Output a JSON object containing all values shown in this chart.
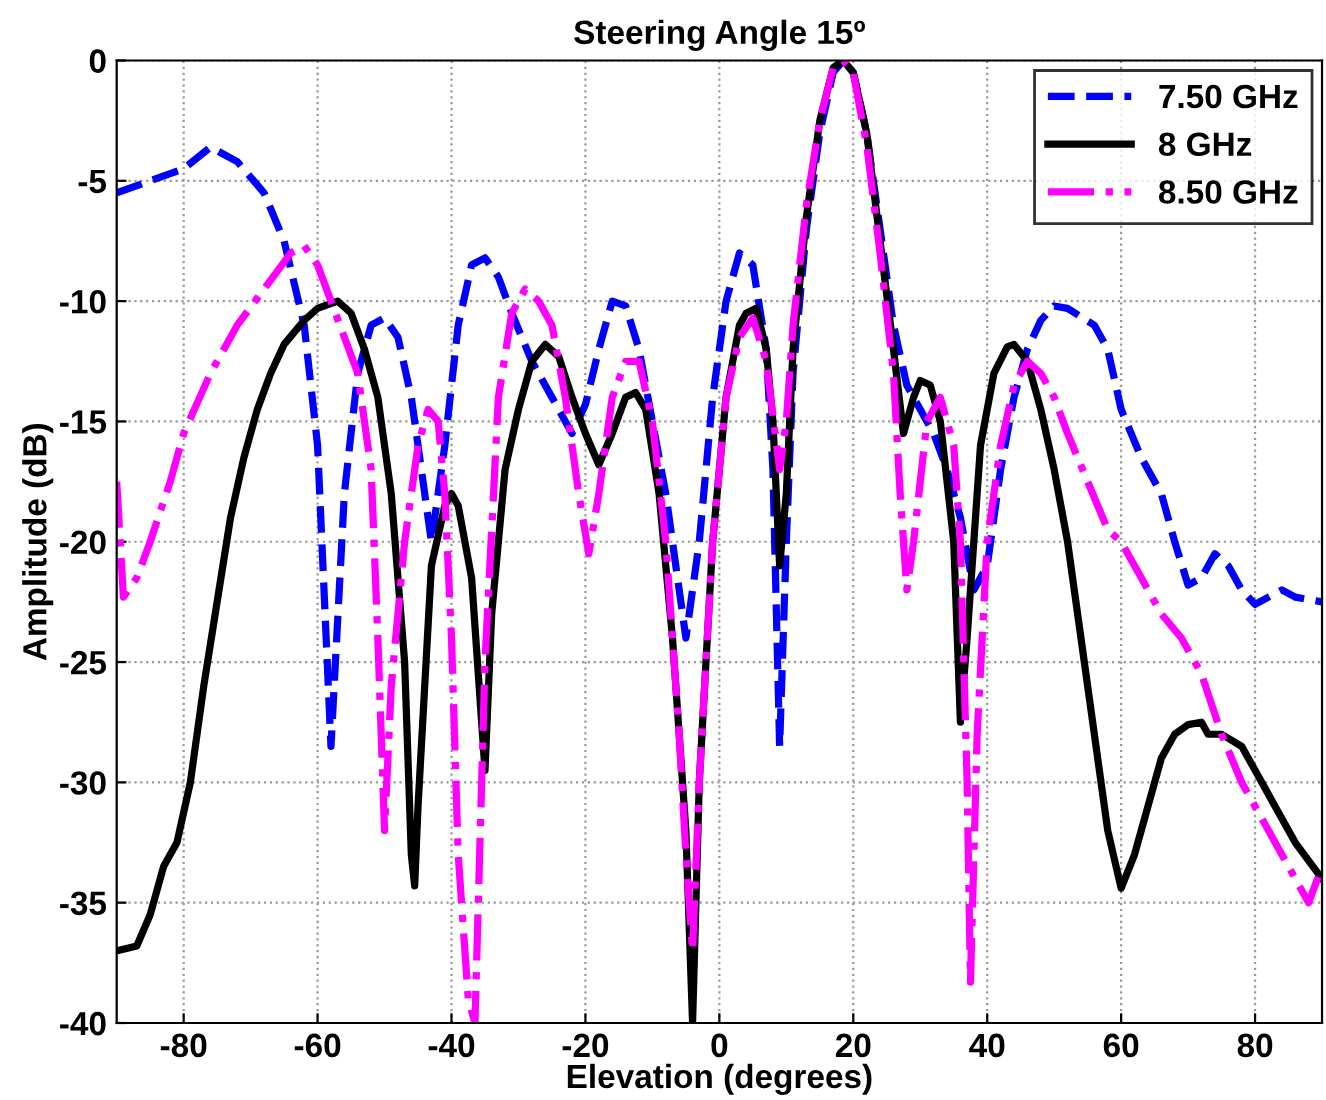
{
  "chart_data": {
    "type": "line",
    "title": "Steering Angle 15º",
    "xlabel": "Elevation (degrees)",
    "ylabel": "Amplitude (dB)",
    "xlim": [
      -90,
      90
    ],
    "ylim": [
      -40,
      0
    ],
    "xticks": [
      -80,
      -60,
      -40,
      -20,
      0,
      20,
      40,
      60,
      80
    ],
    "yticks": [
      0,
      -5,
      -10,
      -15,
      -20,
      -25,
      -30,
      -35,
      -40
    ],
    "grid": true,
    "legend": "top right",
    "marker": "none",
    "series": [
      {
        "name": "7.50 GHz",
        "color": "#0000ff",
        "line_style": "dashed",
        "x": [
          -90,
          -85,
          -80,
          -76,
          -72,
          -68,
          -65,
          -62,
          -60,
          -58,
          -56,
          -54,
          -52,
          -50,
          -48,
          -46,
          -44,
          -43,
          -41,
          -39,
          -37,
          -35,
          -33,
          -31,
          -28,
          -25,
          -22,
          -20,
          -18,
          -16,
          -14,
          -12,
          -10,
          -8,
          -6,
          -5,
          -3,
          -1,
          1,
          3,
          5,
          7,
          8,
          9,
          10,
          11,
          13,
          15,
          17,
          18.5,
          20,
          22,
          24,
          26,
          28,
          30,
          32,
          34,
          36,
          38,
          40,
          42,
          44,
          46,
          48,
          50,
          52,
          56,
          58,
          60,
          63,
          66,
          68,
          70,
          72,
          74,
          76,
          78,
          80,
          82,
          84,
          86,
          90
        ],
        "values": [
          -5.5,
          -5,
          -4.5,
          -3.6,
          -4.2,
          -5.5,
          -7.5,
          -11,
          -16,
          -28.5,
          -18,
          -13,
          -11,
          -10.7,
          -11.5,
          -14,
          -18,
          -20,
          -16,
          -11,
          -8.5,
          -8.2,
          -9,
          -10.5,
          -12.5,
          -14,
          -15.5,
          -14.3,
          -12,
          -10,
          -10.2,
          -12,
          -15,
          -18,
          -22,
          -24,
          -20,
          -14,
          -10,
          -8,
          -8.5,
          -12,
          -17,
          -28.5,
          -20,
          -13,
          -7,
          -3,
          -0.5,
          0,
          -0.5,
          -3,
          -7,
          -11,
          -13.5,
          -14.5,
          -15.5,
          -17,
          -19,
          -22,
          -21,
          -17,
          -14,
          -12,
          -10.8,
          -10.2,
          -10.3,
          -11,
          -12,
          -14.5,
          -16.5,
          -18,
          -20,
          -21.8,
          -21.5,
          -20.5,
          -21,
          -22,
          -22.6,
          -22.3,
          -22,
          -22.3,
          -22.5
        ]
      },
      {
        "name": "8 GHz",
        "color": "#000000",
        "line_style": "solid",
        "x": [
          -90,
          -87,
          -85,
          -83,
          -81,
          -79,
          -77,
          -75,
          -73,
          -71,
          -69,
          -67,
          -65,
          -62,
          -60,
          -57,
          -55,
          -53,
          -51,
          -49,
          -47,
          -46,
          -45.5,
          -45,
          -43,
          -41,
          -40,
          -39,
          -37,
          -35,
          -34,
          -32,
          -30,
          -28,
          -26,
          -24,
          -22,
          -20,
          -18,
          -16,
          -14,
          -12.5,
          -11,
          -9,
          -7,
          -5,
          -4,
          -3,
          -1,
          1,
          3,
          4,
          5.5,
          7,
          8,
          9,
          10,
          11,
          13,
          15,
          17,
          18.5,
          20,
          22,
          24,
          26,
          27.5,
          29,
          30,
          31.5,
          33,
          35,
          36,
          37,
          39,
          41,
          43,
          44,
          46,
          48,
          50,
          52,
          54,
          56,
          58,
          60,
          62,
          64,
          66,
          68,
          70,
          72,
          73,
          75,
          78,
          80,
          83,
          86,
          90
        ],
        "values": [
          -37,
          -36.8,
          -35.5,
          -33.5,
          -32.5,
          -30,
          -26,
          -22.5,
          -19,
          -16.5,
          -14.5,
          -13,
          -11.8,
          -10.8,
          -10.3,
          -10,
          -10.5,
          -12,
          -14,
          -18,
          -25,
          -33,
          -34.3,
          -31,
          -21,
          -18.5,
          -18,
          -18.5,
          -21.5,
          -29.5,
          -23,
          -17,
          -14.5,
          -12.5,
          -11.8,
          -12.3,
          -14,
          -15.5,
          -16.8,
          -15.5,
          -14,
          -13.8,
          -14.5,
          -18,
          -24,
          -32,
          -40,
          -30,
          -20,
          -14,
          -11,
          -10.5,
          -10.3,
          -12,
          -15,
          -21,
          -18,
          -12,
          -6.5,
          -2.5,
          -0.3,
          0,
          -0.5,
          -3,
          -7.5,
          -12,
          -15.5,
          -14,
          -13.3,
          -13.5,
          -15,
          -20,
          -27.5,
          -24,
          -16,
          -13,
          -11.9,
          -11.8,
          -12.5,
          -14.5,
          -17,
          -20,
          -24,
          -28,
          -32,
          -34.4,
          -33,
          -31,
          -29,
          -28,
          -27.6,
          -27.5,
          -28,
          -28,
          -28.5,
          -29.5,
          -31,
          -32.5,
          -34
        ]
      },
      {
        "name": "8.50 GHz",
        "color": "#ff00ff",
        "line_style": "dashdot",
        "x": [
          -90,
          -89,
          -87,
          -85,
          -82,
          -80,
          -76,
          -72,
          -68,
          -64,
          -62,
          -60,
          -58,
          -56,
          -54,
          -52,
          -51,
          -50,
          -49,
          -47,
          -45,
          -43.5,
          -42,
          -41,
          -40,
          -39,
          -37.5,
          -36.5,
          -35,
          -33,
          -31,
          -29,
          -27,
          -25,
          -23,
          -21,
          -19.5,
          -18,
          -16,
          -14,
          -12,
          -10,
          -8,
          -6,
          -5,
          -4,
          -3,
          -1,
          1,
          3,
          5,
          7,
          9,
          10,
          11,
          13,
          15,
          17,
          18.5,
          20,
          22,
          24,
          26,
          27,
          28,
          29,
          31,
          33,
          35,
          36,
          37,
          37.5,
          38.5,
          40,
          42,
          44,
          46,
          48,
          50,
          52,
          55,
          58,
          60,
          63,
          66,
          69,
          72,
          75,
          78,
          81,
          84,
          88,
          90
        ],
        "values": [
          -17.5,
          -22.3,
          -21.5,
          -20,
          -17.5,
          -15.5,
          -13,
          -11,
          -9.5,
          -8,
          -7.7,
          -8.5,
          -10,
          -11.5,
          -13,
          -17,
          -24,
          -32,
          -26,
          -20,
          -16,
          -14.5,
          -15,
          -18,
          -24,
          -33,
          -39,
          -40,
          -25,
          -14,
          -10.5,
          -9.5,
          -10,
          -11,
          -14,
          -18,
          -20.5,
          -18,
          -14,
          -12.5,
          -12.5,
          -15,
          -20,
          -28,
          -33,
          -37,
          -30,
          -20,
          -14,
          -11.5,
          -10.7,
          -12.5,
          -17,
          -15,
          -11,
          -6,
          -2.5,
          -0.3,
          0,
          -0.5,
          -3.5,
          -8,
          -13,
          -18,
          -22,
          -20,
          -15,
          -14,
          -16,
          -20,
          -30,
          -38.3,
          -28,
          -20,
          -16,
          -13.5,
          -12.5,
          -13,
          -14,
          -15.5,
          -17.5,
          -19.5,
          -20,
          -21.5,
          -23,
          -24,
          -25.5,
          -28,
          -30,
          -31.5,
          -33,
          -35,
          -33.5
        ]
      }
    ]
  }
}
